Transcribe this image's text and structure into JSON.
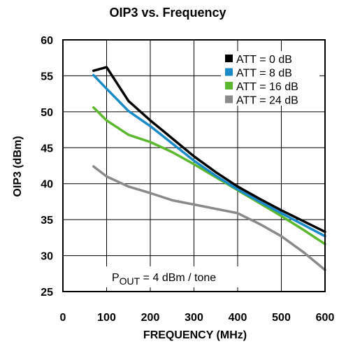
{
  "chart_data": {
    "type": "line",
    "title": "OIP3 vs. Frequency",
    "xlabel": "FREQUENCY (MHz)",
    "ylabel": "OIP3 (dBm)",
    "xlim": [
      0,
      600
    ],
    "ylim": [
      25,
      60
    ],
    "xticks": [
      0,
      100,
      200,
      300,
      400,
      500,
      600
    ],
    "yticks": [
      25,
      30,
      35,
      40,
      45,
      50,
      55,
      60
    ],
    "grid": true,
    "legend_position": "top-right",
    "annotation": {
      "main": "P",
      "sub": "OUT",
      "rest": " = 4 dBm / tone"
    },
    "series": [
      {
        "name": "ATT = 0 dB",
        "color": "#000000",
        "x": [
          70,
          100,
          150,
          200,
          250,
          300,
          350,
          400,
          450,
          500,
          550,
          600
        ],
        "y": [
          55.7,
          56.2,
          51.5,
          48.8,
          46.3,
          43.8,
          41.6,
          39.6,
          37.9,
          36.3,
          34.8,
          33.3
        ]
      },
      {
        "name": "ATT = 8 dB",
        "color": "#1a8ac8",
        "x": [
          70,
          100,
          150,
          200,
          250,
          300,
          350,
          400,
          450,
          500,
          550,
          600
        ],
        "y": [
          55.1,
          53.2,
          50.1,
          48.0,
          45.6,
          43.2,
          41.1,
          39.2,
          37.5,
          35.9,
          34.3,
          32.7
        ]
      },
      {
        "name": "ATT = 16 dB",
        "color": "#5cb82e",
        "x": [
          70,
          100,
          150,
          200,
          250,
          300,
          350,
          400,
          450,
          500,
          550,
          600
        ],
        "y": [
          50.6,
          48.8,
          46.8,
          45.8,
          44.4,
          42.7,
          40.9,
          39.1,
          37.3,
          35.5,
          33.6,
          31.6
        ]
      },
      {
        "name": "ATT = 24 dB",
        "color": "#8a8a8a",
        "x": [
          70,
          100,
          150,
          200,
          250,
          300,
          350,
          400,
          450,
          500,
          550,
          600
        ],
        "y": [
          42.4,
          41.0,
          39.6,
          38.7,
          37.7,
          37.1,
          36.5,
          35.9,
          34.4,
          32.7,
          30.5,
          28.0
        ]
      }
    ]
  }
}
